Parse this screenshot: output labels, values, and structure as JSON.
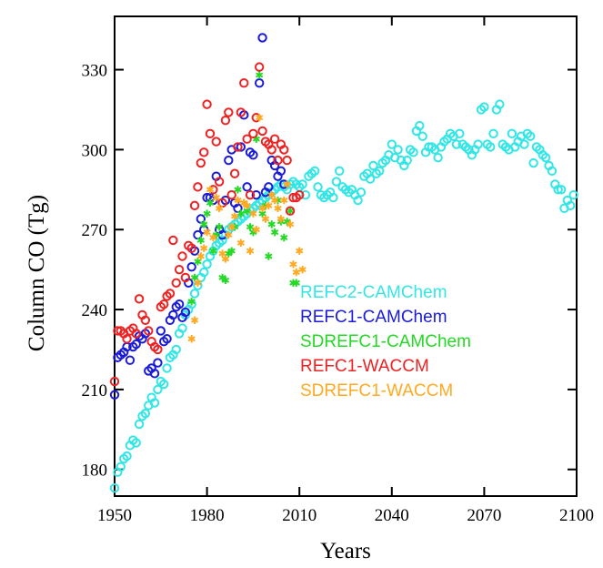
{
  "chart_data": {
    "type": "scatter",
    "xlabel": "Years",
    "ylabel": "Column CO (Tg)",
    "xlim": [
      1950,
      2100
    ],
    "ylim": [
      170,
      350
    ],
    "xticks": [
      1950,
      1980,
      2010,
      2040,
      2070,
      2100
    ],
    "yticks": [
      180,
      210,
      240,
      270,
      300,
      330
    ],
    "legend_position": "center",
    "grid": false,
    "series": [
      {
        "name": "REFC2-CAMChem",
        "color": "#33e6e6",
        "marker": "circle",
        "x": [
          1950,
          1951,
          1952,
          1953,
          1954,
          1955,
          1956,
          1957,
          1958,
          1959,
          1960,
          1961,
          1962,
          1963,
          1964,
          1965,
          1966,
          1967,
          1968,
          1969,
          1970,
          1971,
          1972,
          1973,
          1974,
          1975,
          1976,
          1977,
          1978,
          1979,
          1980,
          1981,
          1982,
          1983,
          1984,
          1985,
          1986,
          1987,
          1988,
          1989,
          1990,
          1991,
          1992,
          1993,
          1994,
          1995,
          1996,
          1997,
          1998,
          1999,
          2000,
          2001,
          2002,
          2003,
          2004,
          2005,
          2006,
          2007,
          2008,
          2009,
          2010,
          2011,
          2012,
          2013,
          2014,
          2015,
          2016,
          2017,
          2018,
          2019,
          2020,
          2021,
          2022,
          2023,
          2024,
          2025,
          2026,
          2027,
          2028,
          2029,
          2030,
          2031,
          2032,
          2033,
          2034,
          2035,
          2036,
          2037,
          2038,
          2039,
          2040,
          2041,
          2042,
          2043,
          2044,
          2045,
          2046,
          2047,
          2048,
          2049,
          2050,
          2051,
          2052,
          2053,
          2054,
          2055,
          2056,
          2057,
          2058,
          2059,
          2060,
          2061,
          2062,
          2063,
          2064,
          2065,
          2066,
          2067,
          2068,
          2069,
          2070,
          2071,
          2072,
          2073,
          2074,
          2075,
          2076,
          2077,
          2078,
          2079,
          2080,
          2081,
          2082,
          2083,
          2084,
          2085,
          2086,
          2087,
          2088,
          2089,
          2090,
          2091,
          2092,
          2093,
          2094,
          2095,
          2096,
          2097,
          2098,
          2099
        ],
        "y": [
          173,
          179,
          181,
          184,
          185,
          189,
          191,
          190,
          197,
          200,
          201,
          204,
          207,
          205,
          210,
          213,
          212,
          218,
          222,
          223,
          225,
          231,
          233,
          238,
          240,
          242,
          246,
          249,
          252,
          254,
          257,
          260,
          262,
          264,
          265,
          266,
          268,
          270,
          271,
          272,
          273,
          274,
          275,
          276,
          277,
          278,
          279,
          280,
          281,
          282,
          283,
          284,
          285,
          286,
          287,
          286,
          285,
          287,
          288,
          287,
          286,
          287,
          283,
          290,
          291,
          292,
          286,
          283,
          282,
          283,
          284,
          282,
          288,
          292,
          286,
          285,
          284,
          285,
          283,
          281,
          284,
          290,
          291,
          289,
          294,
          291,
          292,
          295,
          296,
          298,
          302,
          297,
          300,
          296,
          294,
          296,
          300,
          299,
          307,
          309,
          305,
          299,
          301,
          301,
          300,
          297,
          301,
          303,
          304,
          306,
          305,
          302,
          306,
          302,
          301,
          300,
          298,
          300,
          302,
          315,
          316,
          302,
          301,
          306,
          315,
          317,
          302,
          301,
          300,
          306,
          301,
          303,
          305,
          302,
          306,
          305,
          295,
          301,
          300,
          298,
          297,
          294,
          292,
          287,
          285,
          285,
          278,
          281,
          279,
          283
        ]
      },
      {
        "name": "REFC1-CAMChem",
        "color": "#1a1ad9",
        "marker": "circle",
        "x": [
          1950,
          1951,
          1952,
          1953,
          1954,
          1955,
          1956,
          1957,
          1958,
          1959,
          1960,
          1961,
          1962,
          1963,
          1964,
          1965,
          1966,
          1967,
          1968,
          1969,
          1970,
          1971,
          1972,
          1973,
          1974,
          1975,
          1976,
          1977,
          1978,
          1979,
          1980,
          1981,
          1982,
          1983,
          1984,
          1985,
          1986,
          1987,
          1988,
          1989,
          1990,
          1991,
          1992,
          1993,
          1994,
          1995,
          1996,
          1997,
          1998,
          1999,
          2000,
          2001,
          2002,
          2003,
          2004,
          2005
        ],
        "y": [
          208,
          222,
          223,
          224,
          226,
          221,
          226,
          227,
          230,
          229,
          231,
          217,
          218,
          216,
          220,
          232,
          228,
          229,
          236,
          238,
          241,
          242,
          237,
          239,
          250,
          256,
          262,
          268,
          274,
          270,
          282,
          282,
          281,
          290,
          270,
          268,
          281,
          296,
          300,
          280,
          278,
          301,
          313,
          286,
          299,
          298,
          283,
          325,
          342,
          284,
          286,
          296,
          294,
          290,
          292,
          287
        ]
      },
      {
        "name": "SDREFC1-CAMChem",
        "color": "#26d926",
        "marker": "asterisk",
        "x": [
          1975,
          1976,
          1977,
          1978,
          1979,
          1980,
          1981,
          1982,
          1983,
          1984,
          1985,
          1986,
          1987,
          1988,
          1989,
          1990,
          1991,
          1992,
          1993,
          1994,
          1995,
          1996,
          1997,
          1998,
          1999,
          2000,
          2001,
          2002,
          2003,
          2004,
          2005,
          2006,
          2007,
          2008,
          2009
        ],
        "y": [
          243,
          252,
          258,
          266,
          272,
          276,
          280,
          262,
          268,
          271,
          252,
          251,
          261,
          262,
          271,
          285,
          276,
          280,
          277,
          271,
          269,
          304,
          328,
          276,
          279,
          260,
          272,
          269,
          281,
          273,
          267,
          273,
          277,
          250,
          250
        ]
      },
      {
        "name": "REFC1-WACCM",
        "color": "#ee2222",
        "marker": "circle",
        "x": [
          1950,
          1951,
          1952,
          1953,
          1954,
          1955,
          1956,
          1957,
          1958,
          1959,
          1960,
          1961,
          1962,
          1963,
          1964,
          1965,
          1966,
          1967,
          1968,
          1969,
          1970,
          1971,
          1972,
          1973,
          1974,
          1975,
          1976,
          1977,
          1978,
          1979,
          1980,
          1981,
          1982,
          1983,
          1984,
          1985,
          1986,
          1987,
          1988,
          1989,
          1990,
          1991,
          1992,
          1993,
          1994,
          1995,
          1996,
          1997,
          1998,
          1999,
          2000,
          2001,
          2002,
          2003,
          2004,
          2005,
          2006,
          2007,
          2008,
          2009,
          2010
        ],
        "y": [
          213,
          232,
          232,
          231,
          229,
          232,
          233,
          231,
          244,
          238,
          236,
          232,
          228,
          226,
          225,
          241,
          242,
          245,
          246,
          266,
          250,
          255,
          260,
          252,
          264,
          263,
          279,
          286,
          295,
          299,
          317,
          306,
          285,
          303,
          288,
          280,
          311,
          314,
          283,
          291,
          301,
          314,
          325,
          304,
          283,
          306,
          312,
          331,
          307,
          303,
          302,
          300,
          304,
          296,
          302,
          300,
          296,
          277,
          282,
          282,
          283
        ]
      },
      {
        "name": "SDREFC1-WACCM",
        "color": "#ffaa22",
        "marker": "asterisk",
        "x": [
          1975,
          1976,
          1977,
          1978,
          1979,
          1980,
          1981,
          1982,
          1983,
          1984,
          1985,
          1986,
          1987,
          1988,
          1989,
          1990,
          1991,
          1992,
          1993,
          1994,
          1995,
          1996,
          1997,
          1998,
          1999,
          2000,
          2001,
          2002,
          2003,
          2004,
          2005,
          2006,
          2007,
          2008,
          2009,
          2010,
          2011
        ],
        "y": [
          229,
          236,
          250,
          260,
          263,
          269,
          285,
          267,
          282,
          278,
          261,
          259,
          268,
          271,
          275,
          281,
          265,
          280,
          279,
          262,
          276,
          270,
          312,
          278,
          274,
          279,
          283,
          281,
          278,
          274,
          281,
          287,
          272,
          257,
          254,
          262,
          255
        ]
      }
    ]
  }
}
